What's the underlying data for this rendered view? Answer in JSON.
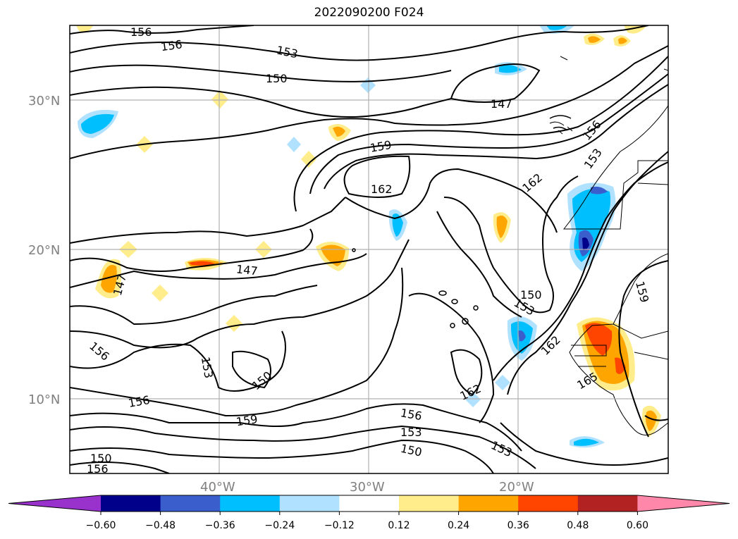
{
  "title": "2022090200 F024",
  "lat_labels": [
    "30°N",
    "20°N",
    "10°N"
  ],
  "lon_labels": [
    "40°W",
    "30°W",
    "20°W"
  ],
  "contour_labels": [
    "156",
    "156",
    "153",
    "150",
    "147",
    "159",
    "162",
    "162",
    "153",
    "156",
    "147",
    "147",
    "150",
    "153",
    "162",
    "159",
    "156",
    "153",
    "150",
    "162",
    "165",
    "159",
    "156",
    "153",
    "150",
    "156",
    "153",
    "150",
    "156"
  ],
  "colorbar": {
    "ticks": [
      "−0.60",
      "−0.48",
      "−0.36",
      "−0.24",
      "−0.12",
      "0.12",
      "0.24",
      "0.36",
      "0.48",
      "0.60"
    ],
    "colors": [
      "#9932cc",
      "#00008b",
      "#3a5fcd",
      "#00bfff",
      "#b0e2ff",
      "#ffffff",
      "#ffec8b",
      "#ffa500",
      "#ff4500",
      "#b22222",
      "#ff88aa"
    ]
  },
  "chart_data": {
    "type": "heatmap",
    "title": "2022090200 F024",
    "lon_ticks": [
      "40°W",
      "30°W",
      "20°W"
    ],
    "lat_ticks": [
      "30°N",
      "20°N",
      "10°N"
    ],
    "contour_levels": [
      147,
      150,
      153,
      156,
      159,
      162,
      165
    ],
    "colorbar_levels": [
      -0.6,
      -0.48,
      -0.36,
      -0.24,
      -0.12,
      0.12,
      0.24,
      0.36,
      0.48,
      0.6
    ],
    "grid": true,
    "colorbar_placement": "bottom"
  }
}
